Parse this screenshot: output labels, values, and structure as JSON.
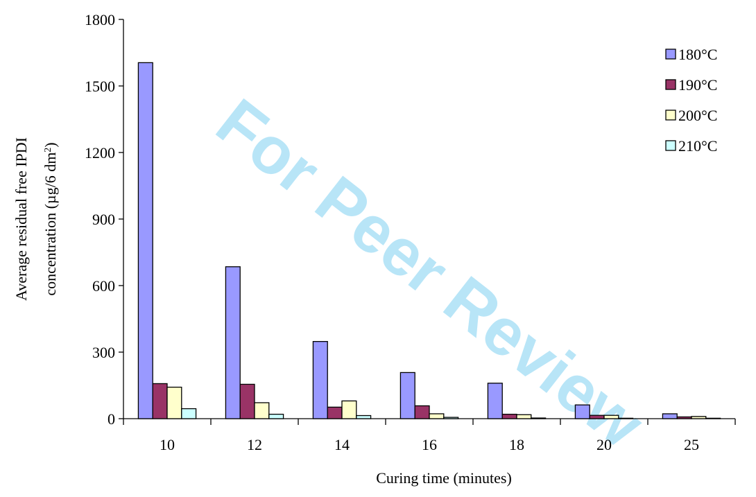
{
  "watermark": "For Peer Review",
  "chart_data": {
    "type": "bar",
    "categories": [
      "10",
      "12",
      "14",
      "16",
      "18",
      "20",
      "25"
    ],
    "series": [
      {
        "name": "180°C",
        "color": "#9999ff",
        "values": [
          1605,
          685,
          348,
          208,
          160,
          62,
          22
        ]
      },
      {
        "name": "190°C",
        "color": "#993366",
        "values": [
          158,
          155,
          52,
          58,
          20,
          15,
          8
        ]
      },
      {
        "name": "200°C",
        "color": "#ffffcc",
        "values": [
          142,
          72,
          80,
          22,
          18,
          15,
          10
        ]
      },
      {
        "name": "210°C",
        "color": "#ccffff",
        "values": [
          45,
          20,
          14,
          6,
          3,
          2,
          2
        ]
      }
    ],
    "xlabel": "Curing time (minutes)",
    "ylabel_line1": "Average residual free IPDI",
    "ylabel_line2_prefix": "concentration (µg/6 dm",
    "ylabel_line2_sup": "2",
    "ylabel_line2_suffix": ")",
    "ylim": [
      0,
      1800
    ],
    "yticks": [
      0,
      300,
      600,
      900,
      1200,
      1500,
      1800
    ],
    "legend_position": "top-right",
    "grid": false
  }
}
